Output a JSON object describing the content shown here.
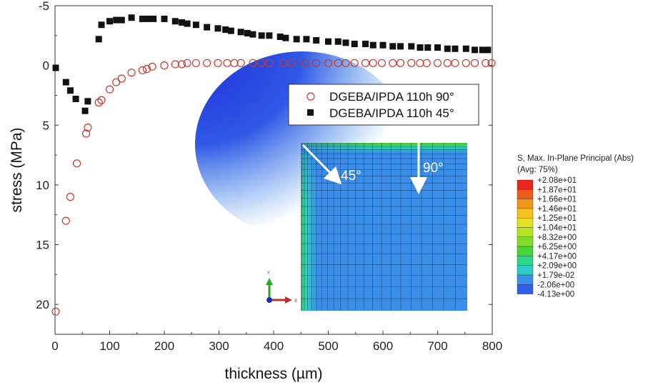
{
  "chart_data": {
    "type": "scatter",
    "xlabel": "thickness (µm)",
    "ylabel": "stress (MPa)",
    "xlim": [
      0,
      800
    ],
    "ylim": [
      -5,
      22.5
    ],
    "y_inverted": true,
    "grid": false,
    "legend_position": "upper-right",
    "x_ticks": [
      "0",
      "100",
      "200",
      "300",
      "400",
      "500",
      "600",
      "700",
      "800"
    ],
    "y_ticks": [
      "-5",
      "0",
      "5",
      "10",
      "15",
      "20"
    ],
    "x_tick_values": [
      0,
      100,
      200,
      300,
      400,
      500,
      600,
      700,
      800
    ],
    "y_tick_values": [
      -5,
      0,
      5,
      10,
      15,
      20
    ],
    "series": [
      {
        "name": "DGEBA/IPDA 110h 90°",
        "marker": "open-circle",
        "color": "#c0392b",
        "x": [
          0,
          20,
          28,
          40,
          57,
          60,
          80,
          85,
          100,
          112,
          122,
          140,
          160,
          168,
          178,
          200,
          220,
          232,
          242,
          258,
          278,
          298,
          315,
          328,
          340,
          362,
          378,
          392,
          418,
          432,
          458,
          478,
          500,
          518,
          532,
          548,
          568,
          582,
          598,
          618,
          632,
          652,
          668,
          680,
          700,
          718,
          732,
          752,
          768,
          788,
          800
        ],
        "y": [
          20.6,
          13.0,
          11.0,
          8.2,
          5.7,
          5.2,
          3.1,
          2.9,
          2.0,
          1.4,
          1.1,
          0.6,
          0.4,
          0.3,
          0.1,
          0.0,
          -0.1,
          -0.1,
          -0.2,
          -0.2,
          -0.2,
          -0.2,
          -0.2,
          -0.2,
          -0.2,
          -0.2,
          -0.2,
          -0.2,
          -0.2,
          -0.2,
          -0.2,
          -0.2,
          -0.2,
          -0.2,
          -0.2,
          -0.2,
          -0.2,
          -0.2,
          -0.2,
          -0.2,
          -0.2,
          -0.2,
          -0.2,
          -0.2,
          -0.2,
          -0.2,
          -0.2,
          -0.2,
          -0.2,
          -0.2,
          -0.2
        ]
      },
      {
        "name": "DGEBA/IPDA 110h 45°",
        "marker": "filled-square",
        "color": "#111111",
        "x": [
          0,
          20,
          28,
          38,
          55,
          60,
          80,
          85,
          100,
          112,
          122,
          140,
          160,
          170,
          180,
          200,
          220,
          232,
          242,
          258,
          278,
          298,
          312,
          322,
          340,
          352,
          362,
          378,
          392,
          412,
          422,
          442,
          460,
          478,
          500,
          518,
          532,
          548,
          568,
          582,
          600,
          618,
          632,
          652,
          668,
          682,
          700,
          718,
          732,
          752,
          768,
          782,
          792
        ],
        "y": [
          0.2,
          1.4,
          2.1,
          2.8,
          3.8,
          3.0,
          -2.2,
          -3.4,
          -3.7,
          -3.8,
          -3.8,
          -4.0,
          -3.9,
          -3.9,
          -3.9,
          -3.9,
          -3.7,
          -3.6,
          -3.5,
          -3.4,
          -3.2,
          -3.1,
          -3.0,
          -2.9,
          -2.8,
          -2.7,
          -2.6,
          -2.5,
          -2.5,
          -2.4,
          -2.3,
          -2.2,
          -2.2,
          -2.1,
          -2.0,
          -2.0,
          -1.9,
          -1.8,
          -1.8,
          -1.7,
          -1.7,
          -1.6,
          -1.6,
          -1.6,
          -1.5,
          -1.5,
          -1.5,
          -1.4,
          -1.4,
          -1.4,
          -1.3,
          -1.3,
          -1.3
        ]
      }
    ]
  },
  "inset": {
    "arrow_labels": [
      "45°",
      "90°"
    ],
    "triad_labels": [
      "Y",
      "X"
    ],
    "colorbar": {
      "title_line1": "S, Max. In-Plane Principal (Abs)",
      "title_line2": "(Avg: 75%)",
      "labels": [
        "+2.08e+01",
        "+1.87e+01",
        "+1.66e+01",
        "+1.46e+01",
        "+1.25e+01",
        "+1.04e+01",
        "+8.32e+00",
        "+6.25e+00",
        "+4.17e+00",
        "+2.09e+00",
        "+1.79e-02",
        "-2.06e+00",
        "-4.13e+00"
      ],
      "colors": [
        "#e8251f",
        "#ee5a1a",
        "#f39519",
        "#f7c11e",
        "#e3e321",
        "#b6e325",
        "#7fdc2a",
        "#46d637",
        "#2ed68a",
        "#2ec9c9",
        "#3a92ea",
        "#2f5fe8",
        "#1a2fd8"
      ]
    }
  }
}
